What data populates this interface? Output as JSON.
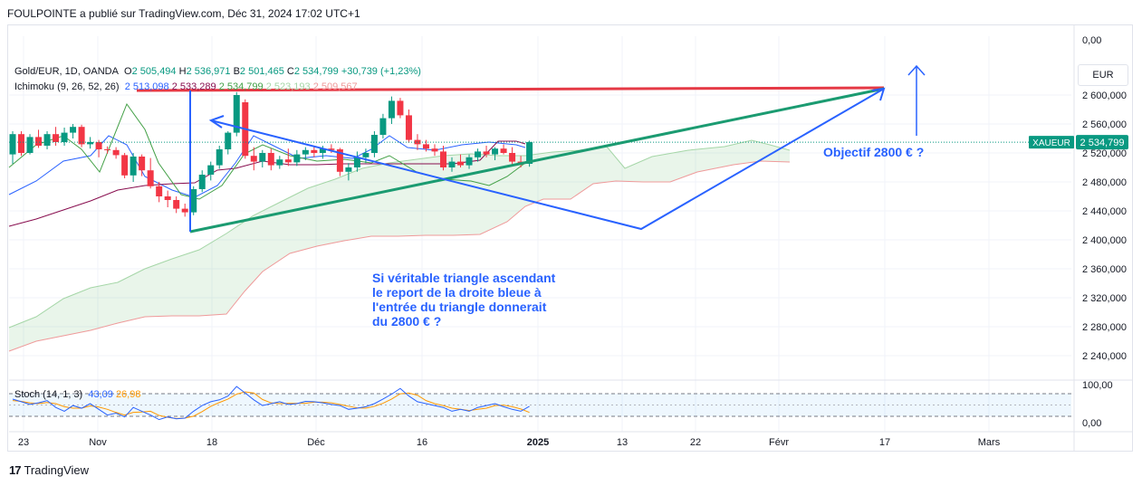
{
  "publish_info": "FOULPOINTE a publié sur TradingView.com, Déc 31, 2024 17:02 UTC+1",
  "legend": {
    "symbol": "Gold/EUR, 1D, OANDA",
    "open_label": "O",
    "open": "2 505,494",
    "high_label": "H",
    "high": "2 536,971",
    "low_label": "B",
    "low": "2 501,465",
    "close_label": "C",
    "close": "2 534,799",
    "change": "+30,739 (+1,23%)",
    "ichimoku_label": "Ichimoku (9, 26, 52, 26)",
    "ichimoku_values": [
      "2 513,098",
      "2 533,289",
      "2 534,799",
      "2 523,193",
      "2 509,567"
    ],
    "stoch_label": "Stoch (14, 1, 3)",
    "stoch_k": "43,09",
    "stoch_d": "26,98"
  },
  "currency": "EUR",
  "ticker_label": "XAUEUR",
  "price_tag": "2 534,799",
  "annotations": {
    "objective": "Objectif 2800 € ?",
    "note_lines": [
      "Si véritable triangle ascendant",
      "le report de la droite bleue à",
      "l'entrée du triangle donnerait",
      "du 2800 € ?"
    ]
  },
  "footer": {
    "brand": "TradingView",
    "logo": "17"
  },
  "colors": {
    "up": "#089981",
    "down": "#f23645",
    "blue": "#2962ff",
    "green_line": "#1b9b71",
    "red_line": "#e53945"
  },
  "chart_data": {
    "type": "candlestick",
    "symbol": "Gold/EUR",
    "timeframe": "1D",
    "y_axis": {
      "ticks": [
        "0,00",
        "2 600,000",
        "2 560,000",
        "2 520,000",
        "2 480,000",
        "2 440,000",
        "2 400,000",
        "2 360,000",
        "2 320,000",
        "2 280,000",
        "2 240,000"
      ],
      "tick_values": [
        2600,
        2560,
        2520,
        2480,
        2440,
        2400,
        2360,
        2320,
        2280,
        2240
      ],
      "range": [
        2205,
        2680
      ]
    },
    "x_axis": {
      "ticks": [
        "23",
        "Nov",
        "18",
        "Déc",
        "16",
        "2025",
        "13",
        "22",
        "Févr",
        "17",
        "Mars"
      ]
    },
    "candles": [
      {
        "o": 2518,
        "h": 2550,
        "l": 2505,
        "c": 2546
      },
      {
        "o": 2546,
        "h": 2550,
        "l": 2516,
        "c": 2520
      },
      {
        "o": 2520,
        "h": 2546,
        "l": 2518,
        "c": 2542
      },
      {
        "o": 2542,
        "h": 2552,
        "l": 2527,
        "c": 2530
      },
      {
        "o": 2530,
        "h": 2550,
        "l": 2525,
        "c": 2546
      },
      {
        "o": 2546,
        "h": 2556,
        "l": 2530,
        "c": 2535
      },
      {
        "o": 2535,
        "h": 2555,
        "l": 2530,
        "c": 2548
      },
      {
        "o": 2548,
        "h": 2560,
        "l": 2540,
        "c": 2556
      },
      {
        "o": 2556,
        "h": 2559,
        "l": 2528,
        "c": 2532
      },
      {
        "o": 2532,
        "h": 2542,
        "l": 2526,
        "c": 2535
      },
      {
        "o": 2535,
        "h": 2538,
        "l": 2514,
        "c": 2525
      },
      {
        "o": 2525,
        "h": 2529,
        "l": 2519,
        "c": 2524
      },
      {
        "o": 2524,
        "h": 2528,
        "l": 2512,
        "c": 2517
      },
      {
        "o": 2517,
        "h": 2520,
        "l": 2485,
        "c": 2489
      },
      {
        "o": 2489,
        "h": 2520,
        "l": 2480,
        "c": 2515
      },
      {
        "o": 2515,
        "h": 2518,
        "l": 2488,
        "c": 2496
      },
      {
        "o": 2496,
        "h": 2513,
        "l": 2471,
        "c": 2474
      },
      {
        "o": 2474,
        "h": 2480,
        "l": 2452,
        "c": 2460
      },
      {
        "o": 2460,
        "h": 2468,
        "l": 2445,
        "c": 2455
      },
      {
        "o": 2455,
        "h": 2460,
        "l": 2437,
        "c": 2443
      },
      {
        "o": 2443,
        "h": 2450,
        "l": 2432,
        "c": 2438
      },
      {
        "o": 2438,
        "h": 2474,
        "l": 2434,
        "c": 2470
      },
      {
        "o": 2470,
        "h": 2496,
        "l": 2466,
        "c": 2490
      },
      {
        "o": 2490,
        "h": 2508,
        "l": 2482,
        "c": 2503
      },
      {
        "o": 2503,
        "h": 2530,
        "l": 2498,
        "c": 2525
      },
      {
        "o": 2525,
        "h": 2550,
        "l": 2518,
        "c": 2548
      },
      {
        "o": 2548,
        "h": 2604,
        "l": 2543,
        "c": 2600
      },
      {
        "o": 2590,
        "h": 2594,
        "l": 2512,
        "c": 2516
      },
      {
        "o": 2516,
        "h": 2528,
        "l": 2496,
        "c": 2508
      },
      {
        "o": 2508,
        "h": 2524,
        "l": 2500,
        "c": 2520
      },
      {
        "o": 2520,
        "h": 2526,
        "l": 2496,
        "c": 2503
      },
      {
        "o": 2503,
        "h": 2516,
        "l": 2498,
        "c": 2511
      },
      {
        "o": 2511,
        "h": 2526,
        "l": 2502,
        "c": 2507
      },
      {
        "o": 2507,
        "h": 2524,
        "l": 2502,
        "c": 2518
      },
      {
        "o": 2518,
        "h": 2528,
        "l": 2510,
        "c": 2524
      },
      {
        "o": 2524,
        "h": 2530,
        "l": 2514,
        "c": 2520
      },
      {
        "o": 2520,
        "h": 2530,
        "l": 2512,
        "c": 2526
      },
      {
        "o": 2526,
        "h": 2532,
        "l": 2520,
        "c": 2524
      },
      {
        "o": 2525,
        "h": 2527,
        "l": 2488,
        "c": 2494
      },
      {
        "o": 2494,
        "h": 2506,
        "l": 2482,
        "c": 2500
      },
      {
        "o": 2500,
        "h": 2522,
        "l": 2494,
        "c": 2514
      },
      {
        "o": 2514,
        "h": 2526,
        "l": 2506,
        "c": 2520
      },
      {
        "o": 2520,
        "h": 2550,
        "l": 2514,
        "c": 2545
      },
      {
        "o": 2545,
        "h": 2574,
        "l": 2540,
        "c": 2568
      },
      {
        "o": 2568,
        "h": 2598,
        "l": 2560,
        "c": 2592
      },
      {
        "o": 2592,
        "h": 2596,
        "l": 2568,
        "c": 2572
      },
      {
        "o": 2572,
        "h": 2580,
        "l": 2534,
        "c": 2538
      },
      {
        "o": 2538,
        "h": 2546,
        "l": 2524,
        "c": 2532
      },
      {
        "o": 2532,
        "h": 2538,
        "l": 2522,
        "c": 2526
      },
      {
        "o": 2526,
        "h": 2532,
        "l": 2516,
        "c": 2522
      },
      {
        "o": 2522,
        "h": 2530,
        "l": 2496,
        "c": 2500
      },
      {
        "o": 2500,
        "h": 2514,
        "l": 2494,
        "c": 2508
      },
      {
        "o": 2508,
        "h": 2518,
        "l": 2500,
        "c": 2503
      },
      {
        "o": 2503,
        "h": 2518,
        "l": 2498,
        "c": 2514
      },
      {
        "o": 2514,
        "h": 2526,
        "l": 2508,
        "c": 2522
      },
      {
        "o": 2522,
        "h": 2530,
        "l": 2514,
        "c": 2518
      },
      {
        "o": 2518,
        "h": 2528,
        "l": 2510,
        "c": 2526
      },
      {
        "o": 2526,
        "h": 2532,
        "l": 2518,
        "c": 2520
      },
      {
        "o": 2520,
        "h": 2528,
        "l": 2504,
        "c": 2508
      },
      {
        "o": 2508,
        "h": 2516,
        "l": 2500,
        "c": 2504
      },
      {
        "o": 2505,
        "h": 2537,
        "l": 2501,
        "c": 2535
      }
    ],
    "stoch": {
      "range": [
        0,
        100
      ],
      "ticks": [
        "100,00",
        "0,00"
      ],
      "k": [
        62,
        55,
        48,
        52,
        58,
        40,
        30,
        45,
        38,
        50,
        35,
        20,
        25,
        15,
        40,
        30,
        20,
        8,
        15,
        10,
        12,
        30,
        45,
        55,
        60,
        70,
        95,
        78,
        60,
        45,
        50,
        55,
        48,
        50,
        56,
        55,
        52,
        48,
        45,
        35,
        38,
        42,
        50,
        62,
        75,
        90,
        70,
        55,
        50,
        45,
        40,
        30,
        35,
        30,
        40,
        45,
        50,
        42,
        35,
        30,
        43
      ],
      "d": [
        58,
        56,
        52,
        50,
        53,
        50,
        42,
        38,
        38,
        44,
        41,
        35,
        27,
        20,
        27,
        28,
        30,
        19,
        14,
        11,
        12,
        17,
        29,
        43,
        53,
        62,
        75,
        81,
        78,
        61,
        52,
        50,
        51,
        51,
        51,
        54,
        54,
        52,
        48,
        43,
        39,
        38,
        43,
        51,
        62,
        76,
        78,
        72,
        58,
        50,
        45,
        38,
        35,
        32,
        35,
        38,
        45,
        46,
        42,
        36,
        27
      ]
    }
  }
}
